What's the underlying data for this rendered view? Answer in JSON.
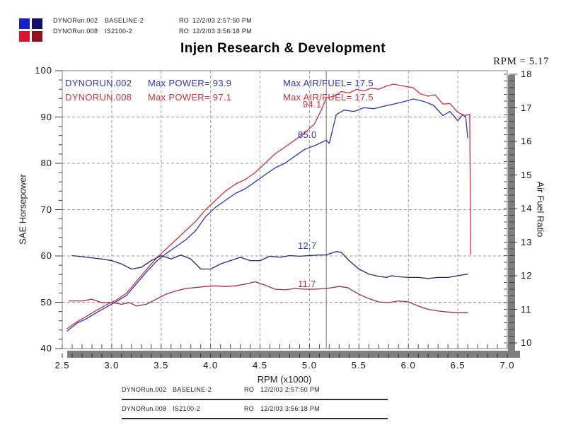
{
  "title": "Injen Research & Development",
  "cursor_readout": "RPM = 5.17",
  "runs": [
    {
      "file": "DYNORun.002",
      "config": "BASELINE-2",
      "operator": "RO",
      "datetime": "12/2/03 2:57:50 PM"
    },
    {
      "file": "DYNORun.008",
      "config": "IS2100-2",
      "operator": "RO",
      "datetime": "12/2/03 3:56:18 PM"
    }
  ],
  "legend": {
    "rows": [
      {
        "name": "DYNORUN.002",
        "power": "Max POWER= 93.9",
        "airfuel": "Max AIR/FUEL= 17.5"
      },
      {
        "name": "DYNORUN.008",
        "power": "Max POWER= 97.1",
        "airfuel": "Max AIR/FUEL= 17.5"
      }
    ]
  },
  "cursor_labels": {
    "power_008": "94.1",
    "power_002": "85.0",
    "airfuel_002": "12.7",
    "airfuel_008": "11.7"
  },
  "colors": {
    "run002_blue": "#3434b4",
    "run008_red": "#cc3340",
    "af002_navy": "#26266e",
    "af008_maroon": "#97304a",
    "grid": "#9b9b9b",
    "shadow": "#7f7f7f",
    "cursor": "#8f8f8f"
  },
  "logo_colors": [
    "#1a1ecb",
    "#12126b",
    "#dc1432",
    "#8c1222"
  ],
  "chart_data": {
    "type": "line",
    "title": "Injen Research & Development",
    "xlabel": "RPM (x1000)",
    "ylabel_left": "SAE Horsepower",
    "ylabel_right": "Air Fuel Ratio",
    "xlim": [
      2.5,
      7.0
    ],
    "ylim_left": [
      40,
      100
    ],
    "ylim_right": [
      10,
      18
    ],
    "x_ticks": [
      2.5,
      3.0,
      3.5,
      4.0,
      4.5,
      5.0,
      5.5,
      6.0,
      6.5,
      7.0
    ],
    "left_ticks": [
      40,
      50,
      60,
      70,
      80,
      90,
      100
    ],
    "right_ticks": [
      10,
      11,
      12,
      13,
      14,
      15,
      16,
      17,
      18
    ],
    "grid": true,
    "legend_position": "top-left-inside",
    "cursor_rpm": 5.17,
    "cursor_values": {
      "power_002": 85.0,
      "power_008": 94.1,
      "airfuel_002": 12.7,
      "airfuel_008": 11.7
    },
    "max_values": {
      "power_002": 93.9,
      "power_008": 97.1,
      "airfuel_002": 17.5,
      "airfuel_008": 17.5
    },
    "series": [
      {
        "name": "DYNORUN.002 Power",
        "axis": "left",
        "color": "#3434b4",
        "points": [
          [
            2.55,
            43.8
          ],
          [
            2.65,
            45.5
          ],
          [
            2.75,
            46.5
          ],
          [
            2.85,
            47.8
          ],
          [
            2.95,
            49.0
          ],
          [
            3.05,
            50.2
          ],
          [
            3.15,
            51.5
          ],
          [
            3.25,
            54.0
          ],
          [
            3.35,
            56.5
          ],
          [
            3.45,
            58.8
          ],
          [
            3.55,
            60.5
          ],
          [
            3.65,
            62.0
          ],
          [
            3.75,
            63.5
          ],
          [
            3.85,
            65.5
          ],
          [
            3.95,
            68.5
          ],
          [
            4.05,
            70.5
          ],
          [
            4.15,
            72.0
          ],
          [
            4.25,
            73.5
          ],
          [
            4.35,
            74.5
          ],
          [
            4.45,
            76.0
          ],
          [
            4.55,
            77.5
          ],
          [
            4.65,
            79.0
          ],
          [
            4.75,
            80.0
          ],
          [
            4.85,
            81.5
          ],
          [
            4.95,
            83.0
          ],
          [
            5.05,
            83.8
          ],
          [
            5.17,
            85.0
          ],
          [
            5.2,
            84.3
          ],
          [
            5.27,
            90.5
          ],
          [
            5.35,
            91.5
          ],
          [
            5.45,
            91.2
          ],
          [
            5.55,
            92.0
          ],
          [
            5.65,
            91.8
          ],
          [
            5.75,
            92.3
          ],
          [
            5.85,
            92.8
          ],
          [
            5.95,
            93.3
          ],
          [
            6.05,
            93.9
          ],
          [
            6.15,
            93.4
          ],
          [
            6.25,
            92.6
          ],
          [
            6.35,
            90.3
          ],
          [
            6.42,
            91.2
          ],
          [
            6.5,
            89.2
          ],
          [
            6.55,
            90.5
          ],
          [
            6.58,
            90.0
          ],
          [
            6.6,
            85.5
          ]
        ]
      },
      {
        "name": "DYNORUN.008 Power",
        "axis": "left",
        "color": "#cc3340",
        "points": [
          [
            2.55,
            44.3
          ],
          [
            2.65,
            45.8
          ],
          [
            2.75,
            47.0
          ],
          [
            2.85,
            48.3
          ],
          [
            2.95,
            49.5
          ],
          [
            3.05,
            50.5
          ],
          [
            3.15,
            52.0
          ],
          [
            3.25,
            54.5
          ],
          [
            3.35,
            57.0
          ],
          [
            3.45,
            59.5
          ],
          [
            3.55,
            61.5
          ],
          [
            3.65,
            63.5
          ],
          [
            3.75,
            65.5
          ],
          [
            3.85,
            67.5
          ],
          [
            3.95,
            70.0
          ],
          [
            4.05,
            72.0
          ],
          [
            4.15,
            74.0
          ],
          [
            4.25,
            75.5
          ],
          [
            4.35,
            76.5
          ],
          [
            4.45,
            78.0
          ],
          [
            4.55,
            80.0
          ],
          [
            4.65,
            82.0
          ],
          [
            4.75,
            83.5
          ],
          [
            4.85,
            85.0
          ],
          [
            4.95,
            86.5
          ],
          [
            5.05,
            88.5
          ],
          [
            5.12,
            91.5
          ],
          [
            5.17,
            94.1
          ],
          [
            5.25,
            94.5
          ],
          [
            5.32,
            95.5
          ],
          [
            5.4,
            95.2
          ],
          [
            5.48,
            96.0
          ],
          [
            5.55,
            95.6
          ],
          [
            5.62,
            96.2
          ],
          [
            5.7,
            96.0
          ],
          [
            5.78,
            96.7
          ],
          [
            5.85,
            97.1
          ],
          [
            5.95,
            96.7
          ],
          [
            6.05,
            96.3
          ],
          [
            6.12,
            95.0
          ],
          [
            6.2,
            94.5
          ],
          [
            6.27,
            94.8
          ],
          [
            6.35,
            92.8
          ],
          [
            6.42,
            92.9
          ],
          [
            6.5,
            91.0
          ],
          [
            6.57,
            90.3
          ],
          [
            6.62,
            90.6
          ],
          [
            6.63,
            60.3
          ]
        ]
      },
      {
        "name": "DYNORUN.002 Air/Fuel",
        "axis": "right",
        "color": "#26266e",
        "points": [
          [
            2.6,
            12.6
          ],
          [
            2.75,
            12.55
          ],
          [
            2.9,
            12.5
          ],
          [
            3.0,
            12.45
          ],
          [
            3.1,
            12.35
          ],
          [
            3.2,
            12.2
          ],
          [
            3.3,
            12.25
          ],
          [
            3.4,
            12.45
          ],
          [
            3.5,
            12.6
          ],
          [
            3.55,
            12.55
          ],
          [
            3.6,
            12.5
          ],
          [
            3.7,
            12.62
          ],
          [
            3.8,
            12.5
          ],
          [
            3.9,
            12.2
          ],
          [
            4.0,
            12.2
          ],
          [
            4.1,
            12.35
          ],
          [
            4.2,
            12.45
          ],
          [
            4.3,
            12.55
          ],
          [
            4.4,
            12.45
          ],
          [
            4.5,
            12.45
          ],
          [
            4.6,
            12.58
          ],
          [
            4.7,
            12.55
          ],
          [
            4.8,
            12.6
          ],
          [
            4.9,
            12.58
          ],
          [
            5.0,
            12.6
          ],
          [
            5.1,
            12.62
          ],
          [
            5.17,
            12.62
          ],
          [
            5.27,
            12.72
          ],
          [
            5.32,
            12.7
          ],
          [
            5.4,
            12.45
          ],
          [
            5.5,
            12.2
          ],
          [
            5.6,
            12.05
          ],
          [
            5.7,
            11.98
          ],
          [
            5.78,
            11.95
          ],
          [
            5.83,
            12.0
          ],
          [
            5.9,
            11.97
          ],
          [
            6.0,
            11.95
          ],
          [
            6.1,
            11.95
          ],
          [
            6.2,
            11.92
          ],
          [
            6.3,
            11.95
          ],
          [
            6.4,
            11.95
          ],
          [
            6.5,
            12.0
          ],
          [
            6.6,
            12.05
          ]
        ]
      },
      {
        "name": "DYNORUN.008 Air/Fuel",
        "axis": "right",
        "color": "#97304a",
        "points": [
          [
            2.57,
            11.25
          ],
          [
            2.7,
            11.25
          ],
          [
            2.8,
            11.3
          ],
          [
            2.9,
            11.2
          ],
          [
            3.0,
            11.2
          ],
          [
            3.1,
            11.15
          ],
          [
            3.18,
            11.2
          ],
          [
            3.25,
            11.1
          ],
          [
            3.35,
            11.15
          ],
          [
            3.45,
            11.3
          ],
          [
            3.55,
            11.45
          ],
          [
            3.65,
            11.55
          ],
          [
            3.75,
            11.62
          ],
          [
            3.85,
            11.65
          ],
          [
            3.95,
            11.68
          ],
          [
            4.05,
            11.7
          ],
          [
            4.15,
            11.68
          ],
          [
            4.25,
            11.7
          ],
          [
            4.35,
            11.75
          ],
          [
            4.45,
            11.82
          ],
          [
            4.55,
            11.72
          ],
          [
            4.65,
            11.6
          ],
          [
            4.75,
            11.58
          ],
          [
            4.85,
            11.62
          ],
          [
            4.95,
            11.6
          ],
          [
            5.05,
            11.6
          ],
          [
            5.17,
            11.62
          ],
          [
            5.3,
            11.68
          ],
          [
            5.38,
            11.65
          ],
          [
            5.5,
            11.45
          ],
          [
            5.6,
            11.32
          ],
          [
            5.7,
            11.22
          ],
          [
            5.8,
            11.2
          ],
          [
            5.9,
            11.25
          ],
          [
            6.0,
            11.22
          ],
          [
            6.1,
            11.1
          ],
          [
            6.2,
            11.0
          ],
          [
            6.3,
            10.95
          ],
          [
            6.4,
            10.92
          ],
          [
            6.5,
            10.9
          ],
          [
            6.6,
            10.9
          ]
        ]
      }
    ]
  }
}
